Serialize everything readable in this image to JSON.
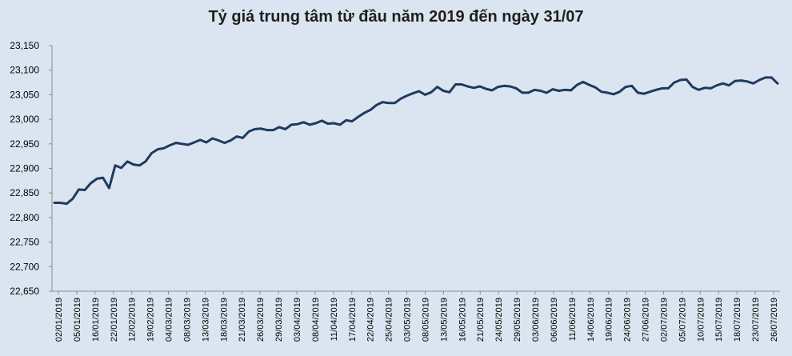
{
  "chart_data": {
    "type": "line",
    "title": "Tỷ giá trung tâm từ đầu năm 2019 đến ngày 31/07",
    "xlabel": "",
    "ylabel": "",
    "ylim": [
      22650,
      23150
    ],
    "yticks": [
      "22,650",
      "22,700",
      "22,750",
      "22,800",
      "22,850",
      "22,900",
      "22,950",
      "23,000",
      "23,050",
      "23,100",
      "23,150"
    ],
    "grid": false,
    "legend": "none",
    "line_color": "#1f3a5f",
    "tick_labels": [
      "02/01/2019",
      "05/01/2019",
      "16/01/2019",
      "22/01/2019",
      "12/02/2019",
      "19/02/2019",
      "04/03/2019",
      "08/03/2019",
      "13/03/2019",
      "18/03/2019",
      "21/03/2019",
      "26/03/2019",
      "29/03/2019",
      "03/04/2019",
      "08/04/2019",
      "11/04/2019",
      "17/04/2019",
      "22/04/2019",
      "25/04/2019",
      "03/05/2019",
      "08/05/2019",
      "13/05/2019",
      "16/05/2019",
      "21/05/2019",
      "24/05/2019",
      "29/05/2019",
      "03/06/2019",
      "06/06/2019",
      "11/06/2019",
      "14/06/2019",
      "19/06/2019",
      "24/06/2019",
      "27/06/2019",
      "02/07/2019",
      "05/07/2019",
      "10/07/2019",
      "15/07/2019",
      "18/07/2019",
      "23/07/2019",
      "26/07/2019"
    ],
    "values": [
      22830,
      22830,
      22828,
      22838,
      22857,
      22856,
      22870,
      22879,
      22881,
      22860,
      22906,
      22901,
      22914,
      22908,
      22906,
      22914,
      22931,
      22939,
      22941,
      22947,
      22952,
      22950,
      22948,
      22953,
      22958,
      22953,
      22961,
      22957,
      22952,
      22957,
      22965,
      22962,
      22975,
      22980,
      22981,
      22978,
      22978,
      22984,
      22980,
      22989,
      22990,
      22994,
      22989,
      22992,
      22997,
      22991,
      22992,
      22989,
      22998,
      22996,
      23005,
      23013,
      23019,
      23029,
      23035,
      23033,
      23033,
      23042,
      23048,
      23053,
      23057,
      23050,
      23055,
      23066,
      23058,
      23055,
      23071,
      23071,
      23067,
      23064,
      23067,
      23062,
      23059,
      23066,
      23068,
      23067,
      23063,
      23054,
      23054,
      23060,
      23058,
      23054,
      23061,
      23058,
      23060,
      23059,
      23070,
      23076,
      23070,
      23065,
      23056,
      23054,
      23051,
      23056,
      23066,
      23068,
      23054,
      23052,
      23056,
      23060,
      23063,
      23063,
      23075,
      23080,
      23081,
      23066,
      23060,
      23064,
      23063,
      23069,
      23073,
      23069,
      23078,
      23079,
      23077,
      23073,
      23080,
      23085,
      23085,
      23073
    ]
  }
}
